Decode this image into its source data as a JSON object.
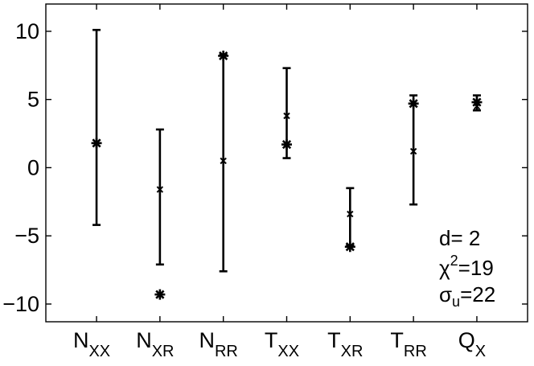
{
  "chart_data": {
    "type": "errorbar",
    "ylim": [
      -11.3,
      12
    ],
    "xlim": [
      0.2,
      7.8
    ],
    "yticks": [
      -10,
      -5,
      0,
      5,
      10
    ],
    "ytick_labels": [
      "−10",
      "−5",
      "0",
      "5",
      "10"
    ],
    "grid": false,
    "categories": [
      {
        "main": "N",
        "sub": "XX"
      },
      {
        "main": "N",
        "sub": "XR"
      },
      {
        "main": "N",
        "sub": "RR"
      },
      {
        "main": "T",
        "sub": "XX"
      },
      {
        "main": "T",
        "sub": "XR"
      },
      {
        "main": "T",
        "sub": "RR"
      },
      {
        "main": "Q",
        "sub": "X"
      }
    ],
    "error_bars": [
      {
        "center": 1.8,
        "low": -4.2,
        "high": 10.1
      },
      {
        "center": -1.6,
        "low": -7.1,
        "high": 2.8
      },
      {
        "center": 0.5,
        "low": -7.6,
        "high": 8.3
      },
      {
        "center": 3.8,
        "low": 0.7,
        "high": 7.3
      },
      {
        "center": -3.4,
        "low": -1.6,
        "high": -1.6,
        "low2": -5.7,
        "high2": -1.5
      },
      {
        "center": 1.2,
        "low": -2.7,
        "high": 5.3
      },
      {
        "center": 4.5,
        "low": 4.2,
        "high": 5.3
      }
    ],
    "markers": [
      1.8,
      -9.3,
      8.2,
      1.7,
      -5.8,
      4.7,
      4.8
    ],
    "annotations": {
      "d": "d= 2",
      "chi_base": "χ",
      "chi_sup": "2",
      "chi_value": "=19",
      "sigma_base": "σ",
      "sigma_sub": "u",
      "sigma_value": "=22"
    }
  }
}
